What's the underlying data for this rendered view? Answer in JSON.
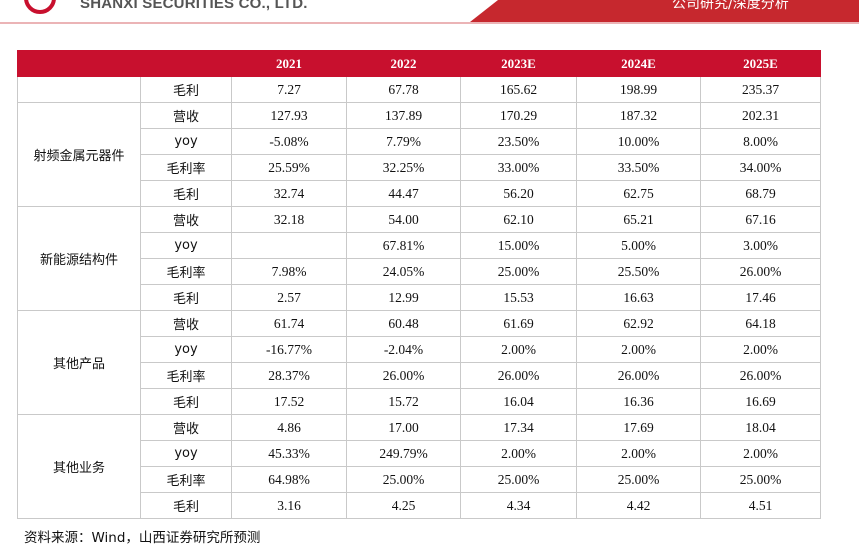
{
  "header": {
    "company_name": "SHANXI SECURITIES CO., LTD.",
    "section_tag": "公司研究/深度分析",
    "accent_color": "#c8102e"
  },
  "table": {
    "columns": [
      "2021",
      "2022",
      "2023E",
      "2024E",
      "2025E"
    ],
    "rows": [
      {
        "segment": "",
        "metric": "毛利",
        "values": [
          "7.27",
          "67.78",
          "165.62",
          "198.99",
          "235.37"
        ]
      },
      {
        "segment": "射频金属元器件",
        "metric": "营收",
        "values": [
          "127.93",
          "137.89",
          "170.29",
          "187.32",
          "202.31"
        ]
      },
      {
        "segment": "",
        "metric": "yoy",
        "values": [
          "-5.08%",
          "7.79%",
          "23.50%",
          "10.00%",
          "8.00%"
        ]
      },
      {
        "segment": "",
        "metric": "毛利率",
        "values": [
          "25.59%",
          "32.25%",
          "33.00%",
          "33.50%",
          "34.00%"
        ]
      },
      {
        "segment": "",
        "metric": "毛利",
        "values": [
          "32.74",
          "44.47",
          "56.20",
          "62.75",
          "68.79"
        ]
      },
      {
        "segment": "新能源结构件",
        "metric": "营收",
        "values": [
          "32.18",
          "54.00",
          "62.10",
          "65.21",
          "67.16"
        ]
      },
      {
        "segment": "",
        "metric": "yoy",
        "values": [
          "",
          "67.81%",
          "15.00%",
          "5.00%",
          "3.00%"
        ]
      },
      {
        "segment": "",
        "metric": "毛利率",
        "values": [
          "7.98%",
          "24.05%",
          "25.00%",
          "25.50%",
          "26.00%"
        ]
      },
      {
        "segment": "",
        "metric": "毛利",
        "values": [
          "2.57",
          "12.99",
          "15.53",
          "16.63",
          "17.46"
        ]
      },
      {
        "segment": "其他产品",
        "metric": "营收",
        "values": [
          "61.74",
          "60.48",
          "61.69",
          "62.92",
          "64.18"
        ]
      },
      {
        "segment": "",
        "metric": "yoy",
        "values": [
          "-16.77%",
          "-2.04%",
          "2.00%",
          "2.00%",
          "2.00%"
        ]
      },
      {
        "segment": "",
        "metric": "毛利率",
        "values": [
          "28.37%",
          "26.00%",
          "26.00%",
          "26.00%",
          "26.00%"
        ]
      },
      {
        "segment": "",
        "metric": "毛利",
        "values": [
          "17.52",
          "15.72",
          "16.04",
          "16.36",
          "16.69"
        ]
      },
      {
        "segment": "其他业务",
        "metric": "营收",
        "values": [
          "4.86",
          "17.00",
          "17.34",
          "17.69",
          "18.04"
        ]
      },
      {
        "segment": "",
        "metric": "yoy",
        "values": [
          "45.33%",
          "249.79%",
          "2.00%",
          "2.00%",
          "2.00%"
        ]
      },
      {
        "segment": "",
        "metric": "毛利率",
        "values": [
          "64.98%",
          "25.00%",
          "25.00%",
          "25.00%",
          "25.00%"
        ]
      },
      {
        "segment": "",
        "metric": "毛利",
        "values": [
          "3.16",
          "4.25",
          "4.34",
          "4.42",
          "4.51"
        ]
      }
    ]
  },
  "footer": {
    "source": "资料来源：Wind，山西证券研究所预测"
  }
}
